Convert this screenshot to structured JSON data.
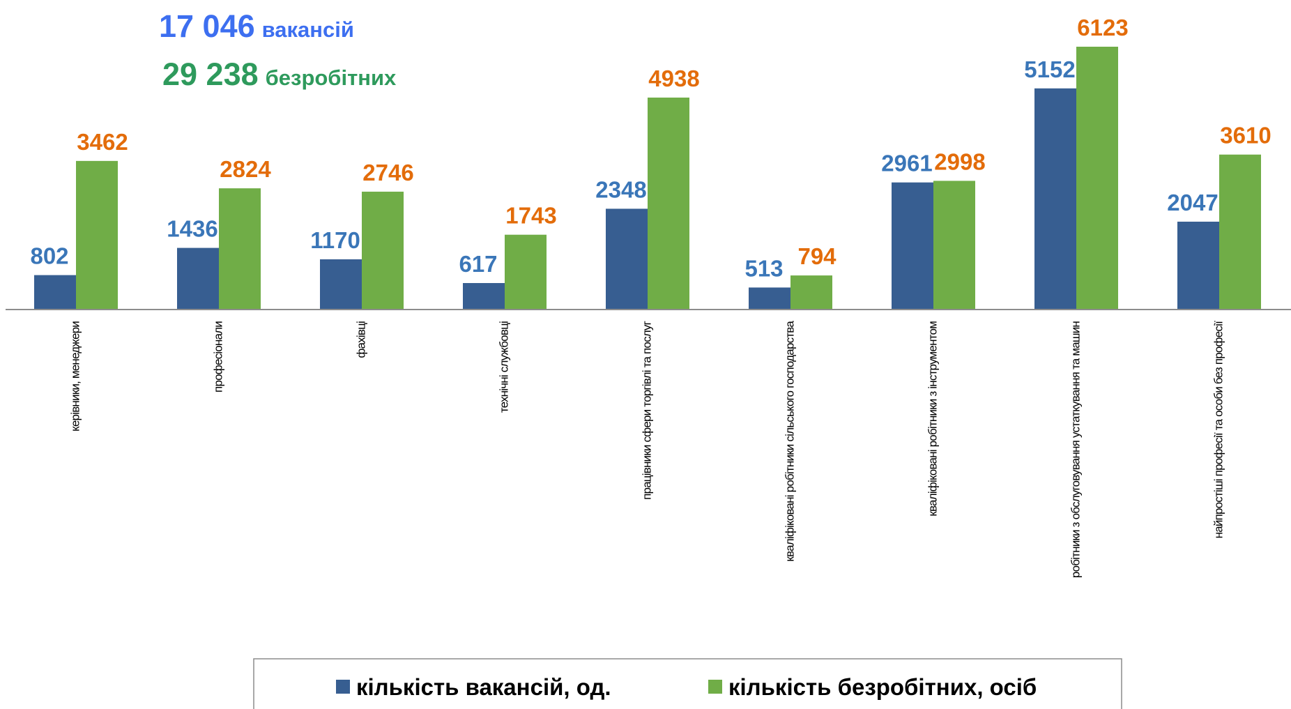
{
  "chart_data": {
    "type": "bar",
    "headline": [
      {
        "number": "17 046",
        "text": "вакансій",
        "color": "#3d6ff0"
      },
      {
        "number": "29 238",
        "text": "безробітних",
        "color": "#2e9a5c"
      }
    ],
    "categories": [
      "керівники, менеджери",
      "професіонали",
      "фахівці",
      "технічні службовці",
      "працівники сфери торгівлі та послуг",
      "кваліфіковані робітники сільського господарства",
      "кваліфіковані робітники з інструментом",
      "робітники з обслуговування устаткування та машин",
      "найпростіші професії та особи без професії"
    ],
    "series": [
      {
        "name": "кількість вакансій, од.",
        "color": "#375e91",
        "label_color": "#3a76b8",
        "values": [
          802,
          1436,
          1170,
          617,
          2348,
          513,
          2961,
          5152,
          2047
        ]
      },
      {
        "name": "кількість безробітних, осіб",
        "color": "#70ad47",
        "label_color": "#e36c0a",
        "values": [
          3462,
          2824,
          2746,
          1743,
          4938,
          794,
          2998,
          6123,
          3610
        ]
      }
    ]
  }
}
